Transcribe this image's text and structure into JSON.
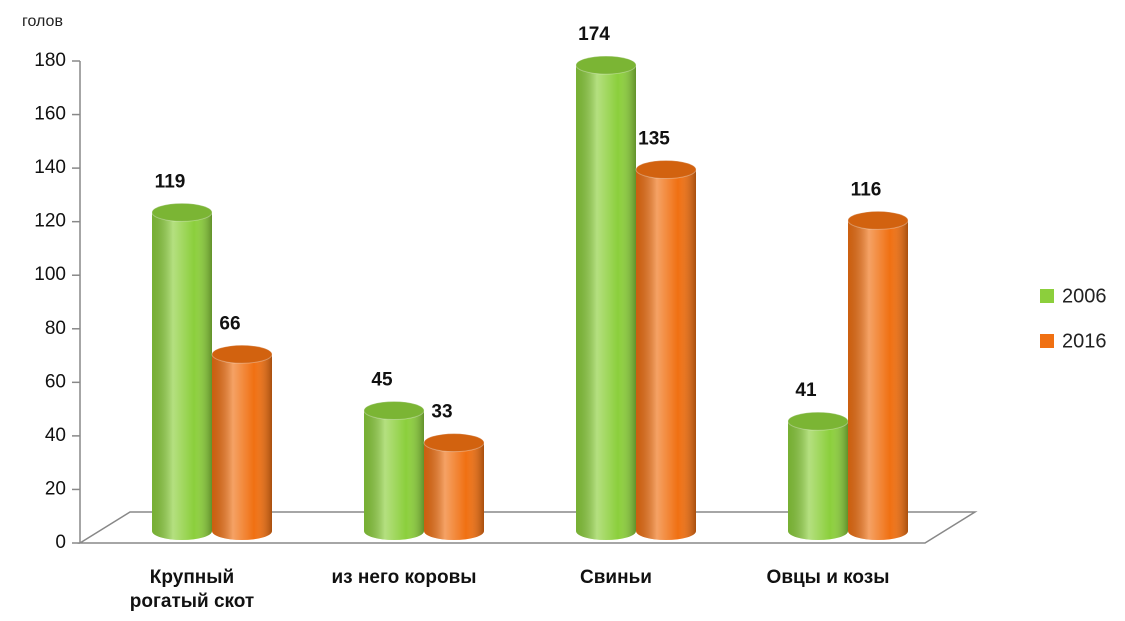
{
  "chart_data": {
    "type": "bar3d",
    "y_axis_label": "голов",
    "categories": [
      "Крупный рогатый скот",
      "из него коровы",
      "Свиньи",
      "Овцы и козы"
    ],
    "series": [
      {
        "name": "2006",
        "color": "#8ccf3c",
        "values": [
          119,
          45,
          174,
          41
        ]
      },
      {
        "name": "2016",
        "color": "#f07012",
        "values": [
          66,
          33,
          135,
          116
        ]
      }
    ],
    "ylim": [
      0,
      180
    ],
    "yticks": [
      0,
      20,
      40,
      60,
      80,
      100,
      120,
      140,
      160,
      180
    ],
    "legend": "right"
  }
}
